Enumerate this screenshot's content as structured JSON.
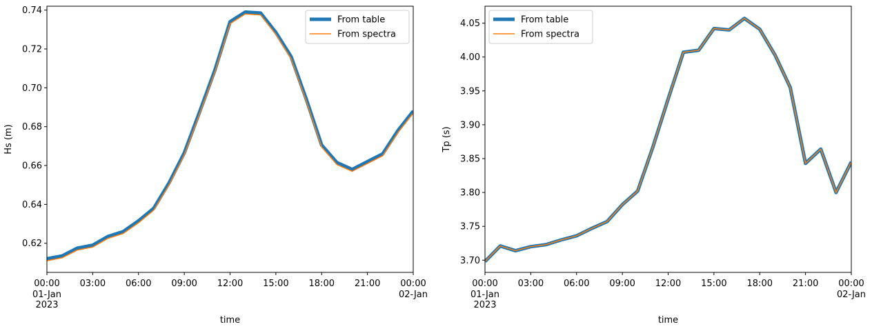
{
  "chart_data": [
    {
      "type": "line",
      "xlabel": "time",
      "ylabel": "Hs (m)",
      "x": [
        "00:00",
        "01:00",
        "02:00",
        "03:00",
        "04:00",
        "05:00",
        "06:00",
        "07:00",
        "08:00",
        "09:00",
        "10:00",
        "11:00",
        "12:00",
        "13:00",
        "14:00",
        "15:00",
        "16:00",
        "17:00",
        "18:00",
        "19:00",
        "20:00",
        "21:00",
        "22:00",
        "23:00",
        "00:00"
      ],
      "xlim": [
        0,
        24
      ],
      "ylim": [
        0.605,
        0.742
      ],
      "x_ticks": [
        {
          "pos": 0,
          "label": "00:00",
          "sub": [
            "01-Jan",
            "2023"
          ]
        },
        {
          "pos": 3,
          "label": "03:00",
          "sub": []
        },
        {
          "pos": 6,
          "label": "06:00",
          "sub": []
        },
        {
          "pos": 9,
          "label": "09:00",
          "sub": []
        },
        {
          "pos": 12,
          "label": "12:00",
          "sub": []
        },
        {
          "pos": 15,
          "label": "15:00",
          "sub": []
        },
        {
          "pos": 18,
          "label": "18:00",
          "sub": []
        },
        {
          "pos": 21,
          "label": "21:00",
          "sub": []
        },
        {
          "pos": 24,
          "label": "00:00",
          "sub": [
            "02-Jan"
          ]
        }
      ],
      "y_ticks": [
        0.62,
        0.64,
        0.66,
        0.68,
        0.7,
        0.72,
        0.74
      ],
      "y_tick_labels": [
        "0.62",
        "0.64",
        "0.66",
        "0.68",
        "0.70",
        "0.72",
        "0.74"
      ],
      "legend_position": "top-right",
      "series": [
        {
          "name": "From table",
          "color": "#1f77b4",
          "style": "thick",
          "values": [
            0.612,
            0.6135,
            0.6175,
            0.619,
            0.6235,
            0.626,
            0.6315,
            0.638,
            0.651,
            0.6665,
            0.6875,
            0.709,
            0.734,
            0.739,
            0.7385,
            0.7285,
            0.716,
            0.694,
            0.6705,
            0.6615,
            0.658,
            0.662,
            0.666,
            0.678,
            0.688
          ]
        },
        {
          "name": "From spectra",
          "color": "#ff7f0e",
          "style": "thin",
          "values": [
            0.611,
            0.6125,
            0.6165,
            0.618,
            0.6225,
            0.625,
            0.6305,
            0.637,
            0.65,
            0.6655,
            0.6865,
            0.708,
            0.733,
            0.738,
            0.7375,
            0.7275,
            0.715,
            0.693,
            0.6695,
            0.6605,
            0.657,
            0.661,
            0.665,
            0.677,
            0.687
          ]
        }
      ]
    },
    {
      "type": "line",
      "xlabel": "time",
      "ylabel": "Tp (s)",
      "x": [
        "00:00",
        "01:00",
        "02:00",
        "03:00",
        "04:00",
        "05:00",
        "06:00",
        "07:00",
        "08:00",
        "09:00",
        "10:00",
        "11:00",
        "12:00",
        "13:00",
        "14:00",
        "15:00",
        "16:00",
        "17:00",
        "18:00",
        "19:00",
        "20:00",
        "21:00",
        "22:00",
        "23:00",
        "00:00"
      ],
      "xlim": [
        0,
        24
      ],
      "ylim": [
        3.682,
        4.075
      ],
      "x_ticks": [
        {
          "pos": 0,
          "label": "00:00",
          "sub": [
            "01-Jan",
            "2023"
          ]
        },
        {
          "pos": 3,
          "label": "03:00",
          "sub": []
        },
        {
          "pos": 6,
          "label": "06:00",
          "sub": []
        },
        {
          "pos": 9,
          "label": "09:00",
          "sub": []
        },
        {
          "pos": 12,
          "label": "12:00",
          "sub": []
        },
        {
          "pos": 15,
          "label": "15:00",
          "sub": []
        },
        {
          "pos": 18,
          "label": "18:00",
          "sub": []
        },
        {
          "pos": 21,
          "label": "21:00",
          "sub": []
        },
        {
          "pos": 24,
          "label": "00:00",
          "sub": [
            "02-Jan"
          ]
        }
      ],
      "y_ticks": [
        3.7,
        3.75,
        3.8,
        3.85,
        3.9,
        3.95,
        4.0,
        4.05
      ],
      "y_tick_labels": [
        "3.70",
        "3.75",
        "3.80",
        "3.85",
        "3.90",
        "3.95",
        "4.00",
        "4.05"
      ],
      "legend_position": "top-left",
      "series": [
        {
          "name": "From table",
          "color": "#1f77b4",
          "style": "thick",
          "values": [
            3.698,
            3.721,
            3.714,
            3.72,
            3.723,
            3.73,
            3.736,
            3.747,
            3.757,
            3.782,
            3.802,
            3.867,
            3.938,
            4.007,
            4.01,
            4.042,
            4.04,
            4.057,
            4.041,
            4.003,
            3.955,
            3.843,
            3.864,
            3.8,
            3.845
          ]
        },
        {
          "name": "From spectra",
          "color": "#ff7f0e",
          "style": "thin",
          "values": [
            3.698,
            3.721,
            3.714,
            3.72,
            3.723,
            3.73,
            3.736,
            3.747,
            3.757,
            3.782,
            3.802,
            3.867,
            3.938,
            4.007,
            4.01,
            4.042,
            4.04,
            4.057,
            4.041,
            4.003,
            3.955,
            3.843,
            3.864,
            3.8,
            3.845
          ]
        }
      ]
    }
  ]
}
